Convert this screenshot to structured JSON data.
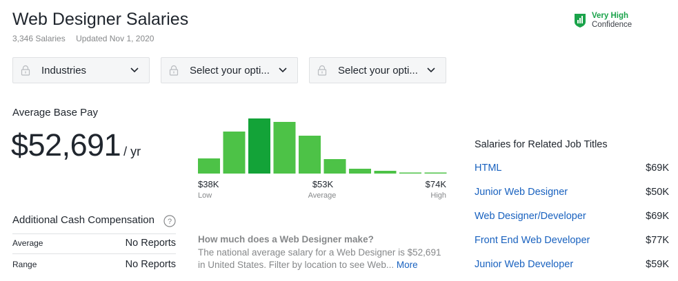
{
  "header": {
    "title": "Web Designer Salaries",
    "salaries_count": "3,346 Salaries",
    "updated": "Updated Nov 1, 2020"
  },
  "confidence": {
    "level": "Very High",
    "label": "Confidence",
    "color": "#1aa34a",
    "icon": "shield-check-icon"
  },
  "filters": [
    {
      "label": "Industries",
      "icon": "lock-icon"
    },
    {
      "label": "Select your opti...",
      "icon": "lock-icon"
    },
    {
      "label": "Select your opti...",
      "icon": "lock-icon"
    }
  ],
  "average_pay": {
    "label": "Average Base Pay",
    "value": "$52,691",
    "unit": "/ yr"
  },
  "chart_data": {
    "type": "bar",
    "title": "",
    "values": [
      22,
      61,
      80,
      75,
      55,
      21,
      7,
      4,
      1,
      1
    ],
    "highlight_index": 2,
    "colors": {
      "bar": "#4dc247",
      "highlight": "#13a338"
    },
    "ticks": [
      {
        "value": "$38K",
        "label": "Low"
      },
      {
        "value": "$53K",
        "label": "Average"
      },
      {
        "value": "$74K",
        "label": "High"
      }
    ]
  },
  "additional_cash": {
    "title": "Additional Cash Compensation",
    "rows": [
      {
        "label": "Average",
        "value": "No Reports"
      },
      {
        "label": "Range",
        "value": "No Reports"
      }
    ]
  },
  "faq": {
    "question": "How much does a Web Designer make?",
    "answer": "The national average salary for a Web Designer is $52,691 in United States. Filter by location to see Web...",
    "more": "More"
  },
  "related": {
    "title": "Salaries for Related Job Titles",
    "items": [
      {
        "title": "HTML",
        "salary": "$69K"
      },
      {
        "title": "Junior Web Designer",
        "salary": "$50K"
      },
      {
        "title": "Web Designer/Developer",
        "salary": "$69K"
      },
      {
        "title": "Front End Web Developer",
        "salary": "$77K"
      },
      {
        "title": "Junior Web Developer",
        "salary": "$59K"
      }
    ]
  }
}
